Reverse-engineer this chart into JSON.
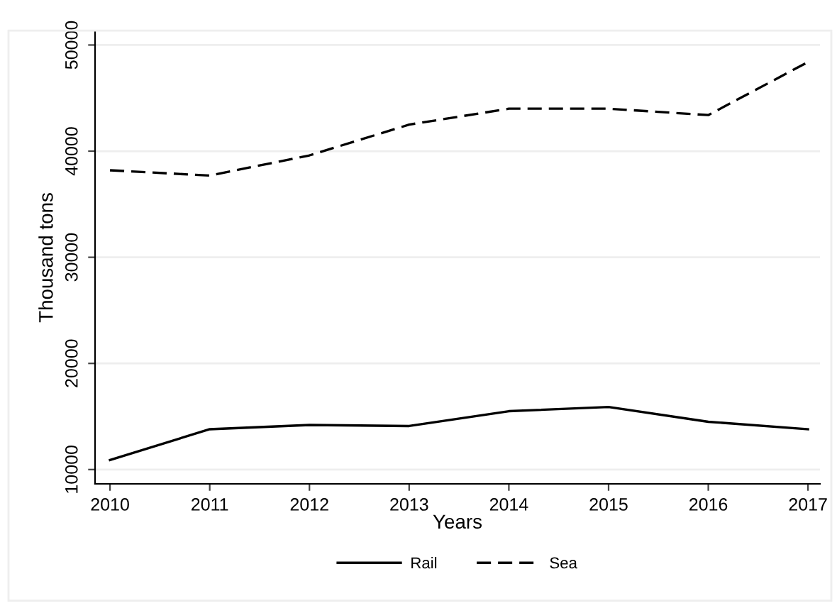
{
  "chart_data": {
    "type": "line",
    "xlabel": "Years",
    "ylabel": "Thousand tons",
    "x": [
      2010,
      2011,
      2012,
      2013,
      2014,
      2015,
      2016,
      2017
    ],
    "series": [
      {
        "name": "Rail",
        "color": "#000000",
        "line_style": "solid",
        "values": [
          10900,
          13800,
          14200,
          14100,
          15500,
          15900,
          14500,
          13800
        ]
      },
      {
        "name": "Sea",
        "color": "#000000",
        "line_style": "dashed",
        "values": [
          38200,
          37700,
          39600,
          42500,
          44000,
          44000,
          43400,
          48400
        ]
      }
    ],
    "xlim": [
      2009.85,
      2017.12
    ],
    "xticks": [
      2010,
      2011,
      2012,
      2013,
      2014,
      2015,
      2016,
      2017
    ],
    "ylim": [
      8650,
      51300
    ],
    "yticks": [
      10000,
      20000,
      30000,
      40000,
      50000
    ],
    "grid": "y",
    "legend": "bottom",
    "marker": "none"
  }
}
